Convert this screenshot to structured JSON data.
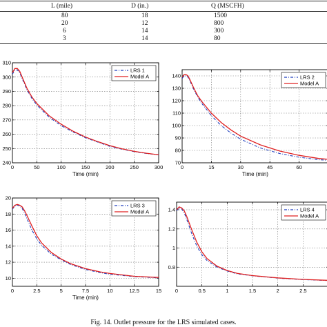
{
  "table": {
    "headers": [
      "L (mile)",
      "D (in.)",
      "Q (MSCFH)"
    ],
    "rows": [
      [
        "80",
        "18",
        "1500"
      ],
      [
        "20",
        "12",
        "800"
      ],
      [
        "6",
        "14",
        "300"
      ],
      [
        "3",
        "14",
        "80"
      ]
    ]
  },
  "caption": "Fig. 14.  Outlet pressure for the LRS simulated cases.",
  "chart_data": [
    {
      "type": "line",
      "xlabel": "Time (min)",
      "ylabel": "",
      "xlim": [
        0,
        300
      ],
      "ylim": [
        240,
        310
      ],
      "xticks": [
        0,
        50,
        100,
        150,
        200,
        250,
        300
      ],
      "yticks": [
        240,
        250,
        260,
        270,
        280,
        290,
        300,
        310
      ],
      "grid": true,
      "legend": "top-right",
      "series": [
        {
          "name": "LRS 1",
          "style": "dashdot",
          "color": "#1f3fbf",
          "x": [
            0,
            5,
            10,
            15,
            20,
            30,
            40,
            50,
            75,
            100,
            125,
            150,
            175,
            200,
            225,
            250,
            275,
            300
          ],
          "y": [
            302,
            305,
            305,
            303,
            299,
            291,
            285,
            280.5,
            272,
            266,
            261.5,
            257.5,
            254.5,
            251.5,
            249.5,
            247.8,
            246.5,
            245.5
          ]
        },
        {
          "name": "Model A",
          "style": "solid",
          "color": "#e02020",
          "x": [
            0,
            5,
            10,
            15,
            20,
            30,
            40,
            50,
            75,
            100,
            125,
            150,
            175,
            200,
            225,
            250,
            275,
            300
          ],
          "y": [
            303,
            306,
            306,
            304,
            300,
            292,
            286,
            281.5,
            273,
            267,
            262,
            258,
            254.8,
            252,
            249.8,
            248,
            246.7,
            245.6
          ]
        }
      ]
    },
    {
      "type": "line",
      "xlabel": "Time (min)",
      "ylabel": "",
      "xlim": [
        0,
        75
      ],
      "ylim": [
        70,
        145
      ],
      "xticks": [
        0,
        15,
        30,
        45,
        60
      ],
      "yticks": [
        70,
        80,
        90,
        100,
        110,
        120,
        130,
        140
      ],
      "grid": true,
      "legend": "top-right",
      "series": [
        {
          "name": "LRS 2",
          "style": "dashdot",
          "color": "#1f3fbf",
          "x": [
            0,
            1,
            2,
            3,
            4,
            6,
            8,
            10,
            15,
            20,
            25,
            30,
            40,
            50,
            60,
            70,
            75
          ],
          "y": [
            138,
            140,
            140,
            139,
            136,
            129,
            123,
            118,
            108,
            100,
            94,
            89,
            82,
            77.5,
            74.5,
            72.5,
            72
          ]
        },
        {
          "name": "Model A",
          "style": "solid",
          "color": "#e02020",
          "x": [
            0,
            1,
            2,
            3,
            4,
            6,
            8,
            10,
            15,
            20,
            25,
            30,
            40,
            50,
            60,
            70,
            75
          ],
          "y": [
            139,
            141,
            141,
            140,
            137,
            130,
            124,
            119.5,
            110,
            102.5,
            96.5,
            91.5,
            84.5,
            79.5,
            76,
            73.5,
            72.8
          ]
        }
      ]
    },
    {
      "type": "line",
      "xlabel": "Time (min)",
      "ylabel": "",
      "xlim": [
        0,
        15
      ],
      "ylim": [
        9,
        20
      ],
      "xticks": [
        0,
        2.5,
        5,
        7.5,
        10,
        12.5,
        15
      ],
      "yticks": [
        10,
        12,
        14,
        16,
        18,
        20
      ],
      "grid": true,
      "legend": "top-right",
      "series": [
        {
          "name": "LRS 3",
          "style": "dashdot",
          "color": "#1f3fbf",
          "x": [
            0,
            0.25,
            0.5,
            0.75,
            1,
            1.25,
            1.5,
            2,
            2.5,
            3,
            4,
            5,
            6,
            7.5,
            9,
            10,
            12.5,
            15
          ],
          "y": [
            18.6,
            19,
            19.1,
            19,
            18.7,
            18.1,
            17.4,
            16,
            14.9,
            14.1,
            13,
            12.3,
            11.7,
            11.1,
            10.7,
            10.5,
            10.2,
            10.05
          ]
        },
        {
          "name": "Model A",
          "style": "solid",
          "color": "#e02020",
          "x": [
            0,
            0.25,
            0.5,
            0.75,
            1,
            1.25,
            1.5,
            2,
            2.5,
            3,
            4,
            5,
            6,
            7.5,
            9,
            10,
            12.5,
            15
          ],
          "y": [
            18.7,
            19.1,
            19.2,
            19.1,
            18.9,
            18.4,
            17.8,
            16.5,
            15.3,
            14.4,
            13.2,
            12.4,
            11.8,
            11.2,
            10.8,
            10.6,
            10.25,
            10.1
          ]
        }
      ]
    },
    {
      "type": "line",
      "xlabel": "",
      "ylabel": "",
      "xlim": [
        0,
        3
      ],
      "ylim": [
        0.6,
        1.48
      ],
      "xticks": [
        0,
        0.5,
        1,
        1.5,
        2,
        2.5
      ],
      "yticks": [
        0.8,
        1,
        1.2,
        1.4
      ],
      "grid": true,
      "legend": "top-right",
      "series": [
        {
          "name": "LRS 4",
          "style": "dashdot",
          "color": "#1f3fbf",
          "x": [
            0,
            0.05,
            0.1,
            0.15,
            0.2,
            0.3,
            0.4,
            0.5,
            0.6,
            0.8,
            1,
            1.2,
            1.5,
            2,
            2.5,
            3
          ],
          "y": [
            1.39,
            1.42,
            1.41,
            1.37,
            1.3,
            1.15,
            1.02,
            0.93,
            0.87,
            0.8,
            0.76,
            0.73,
            0.71,
            0.685,
            0.67,
            0.66
          ]
        },
        {
          "name": "Model A",
          "style": "solid",
          "color": "#e02020",
          "x": [
            0,
            0.05,
            0.1,
            0.15,
            0.2,
            0.3,
            0.4,
            0.5,
            0.6,
            0.8,
            1,
            1.2,
            1.5,
            2,
            2.5,
            3
          ],
          "y": [
            1.4,
            1.43,
            1.42,
            1.39,
            1.33,
            1.19,
            1.06,
            0.96,
            0.89,
            0.81,
            0.765,
            0.735,
            0.712,
            0.688,
            0.672,
            0.662
          ]
        }
      ]
    }
  ]
}
